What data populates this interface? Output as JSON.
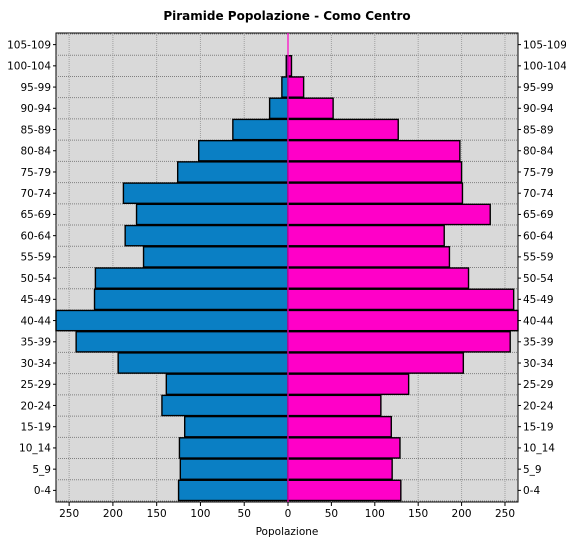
{
  "chart_data": {
    "type": "bar",
    "orientation": "horizontal-pyramid",
    "title": "Piramide Popolazione - Como Centro",
    "xlabel": "Popolazione",
    "xlim": [
      -265,
      265
    ],
    "x_ticks": [
      -250,
      -200,
      -150,
      -100,
      -50,
      0,
      50,
      100,
      150,
      200,
      250
    ],
    "x_tick_labels": [
      "250",
      "200",
      "150",
      "100",
      "50",
      "0",
      "50",
      "100",
      "150",
      "200",
      "250"
    ],
    "grid": true,
    "legend": "none",
    "categories": [
      "0-4",
      "5_9",
      "10_14",
      "15-19",
      "20-24",
      "25-29",
      "30-34",
      "35-39",
      "40-44",
      "45-49",
      "50-54",
      "55-59",
      "60-64",
      "65-69",
      "70-74",
      "75-79",
      "80-84",
      "85-89",
      "90-94",
      "95-99",
      "100-104",
      "105-109"
    ],
    "series": [
      {
        "color": "#0a7fc4",
        "side": "left",
        "values": [
          125,
          123,
          124,
          118,
          144,
          139,
          194,
          242,
          265,
          221,
          220,
          165,
          186,
          173,
          188,
          126,
          102,
          63,
          21,
          7,
          2,
          0
        ]
      },
      {
        "color": "#ff00c8",
        "side": "right",
        "values": [
          130,
          120,
          129,
          119,
          107,
          139,
          202,
          256,
          265,
          260,
          208,
          186,
          180,
          233,
          201,
          200,
          198,
          127,
          52,
          18,
          4,
          0
        ]
      }
    ]
  }
}
